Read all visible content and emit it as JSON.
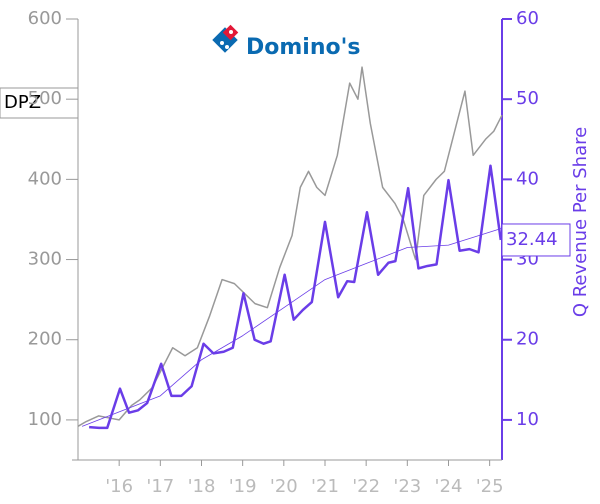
{
  "chart_data": {
    "type": "line",
    "logo": "Domino's",
    "ticker": "DPZ",
    "y2label": "Q Revenue Per Share",
    "xlim": [
      2015,
      2025.3
    ],
    "xticks": [
      {
        "value": 2016,
        "label": "'16"
      },
      {
        "value": 2017,
        "label": "'17"
      },
      {
        "value": 2018,
        "label": "'18"
      },
      {
        "value": 2019,
        "label": "'19"
      },
      {
        "value": 2020,
        "label": "'20"
      },
      {
        "value": 2021,
        "label": "'21"
      },
      {
        "value": 2022,
        "label": "'22"
      },
      {
        "value": 2023,
        "label": "'23"
      },
      {
        "value": 2024,
        "label": "'24"
      },
      {
        "value": 2025,
        "label": "'25"
      }
    ],
    "ylim": [
      50,
      600
    ],
    "yticks": [
      100,
      200,
      300,
      400,
      500,
      600
    ],
    "y2lim": [
      5,
      60
    ],
    "y2ticks": [
      10,
      20,
      30,
      40,
      50,
      60
    ],
    "series": [
      {
        "color": "#999999",
        "width": 1.5,
        "x": [
          2015.0,
          2015.2,
          2015.5,
          2015.8,
          2016.0,
          2016.3,
          2016.5,
          2016.8,
          2017.0,
          2017.3,
          2017.6,
          2017.9,
          2018.2,
          2018.5,
          2018.8,
          2019.0,
          2019.3,
          2019.6,
          2019.9,
          2020.2,
          2020.4,
          2020.6,
          2020.8,
          2021.0,
          2021.3,
          2021.6,
          2021.8,
          2021.9,
          2022.1,
          2022.4,
          2022.7,
          2022.9,
          2023.2,
          2023.4,
          2023.7,
          2023.9,
          2024.2,
          2024.4,
          2024.6,
          2024.9,
          2025.1,
          2025.3
        ],
        "values": [
          92,
          98,
          105,
          102,
          100,
          118,
          125,
          140,
          160,
          190,
          180,
          190,
          230,
          275,
          270,
          260,
          245,
          240,
          290,
          330,
          390,
          410,
          390,
          380,
          430,
          520,
          500,
          540,
          470,
          390,
          370,
          350,
          300,
          380,
          400,
          410,
          470,
          510,
          430,
          450,
          460,
          480
        ]
      },
      {
        "color": "#6a3de8",
        "width": 2.5,
        "axis": "y2",
        "x": [
          2015.27,
          2015.51,
          2015.71,
          2016.02,
          2016.24,
          2016.46,
          2016.68,
          2017.02,
          2017.27,
          2017.51,
          2017.76,
          2018.05,
          2018.29,
          2018.54,
          2018.76,
          2019.02,
          2019.29,
          2019.51,
          2019.68,
          2020.02,
          2020.24,
          2020.46,
          2020.68,
          2021.0,
          2021.32,
          2021.54,
          2021.71,
          2022.02,
          2022.29,
          2022.54,
          2022.71,
          2023.02,
          2023.27,
          2023.49,
          2023.71,
          2024.0,
          2024.27,
          2024.51,
          2024.73,
          2025.02,
          2025.27
        ],
        "values": [
          9.1,
          9.0,
          9.0,
          13.9,
          10.9,
          11.2,
          12.1,
          17.0,
          13.0,
          13.0,
          14.2,
          19.5,
          18.3,
          18.5,
          19.0,
          25.8,
          20.0,
          19.5,
          19.8,
          28.1,
          22.5,
          23.7,
          24.7,
          34.7,
          25.3,
          27.3,
          27.2,
          35.9,
          28.1,
          29.6,
          29.8,
          38.9,
          28.9,
          29.2,
          29.4,
          39.9,
          31.1,
          31.3,
          30.9,
          41.7,
          32.44
        ]
      },
      {
        "color": "#6a3de8",
        "width": 0.8,
        "axis": "y2",
        "x": [
          2015.1,
          2016.0,
          2017.0,
          2018.0,
          2019.0,
          2020.0,
          2021.0,
          2022.0,
          2023.0,
          2024.0,
          2025.3
        ],
        "values": [
          9.2,
          11.0,
          13.0,
          17.5,
          20.5,
          24.0,
          27.5,
          29.5,
          31.5,
          31.8,
          33.9
        ]
      }
    ]
  }
}
